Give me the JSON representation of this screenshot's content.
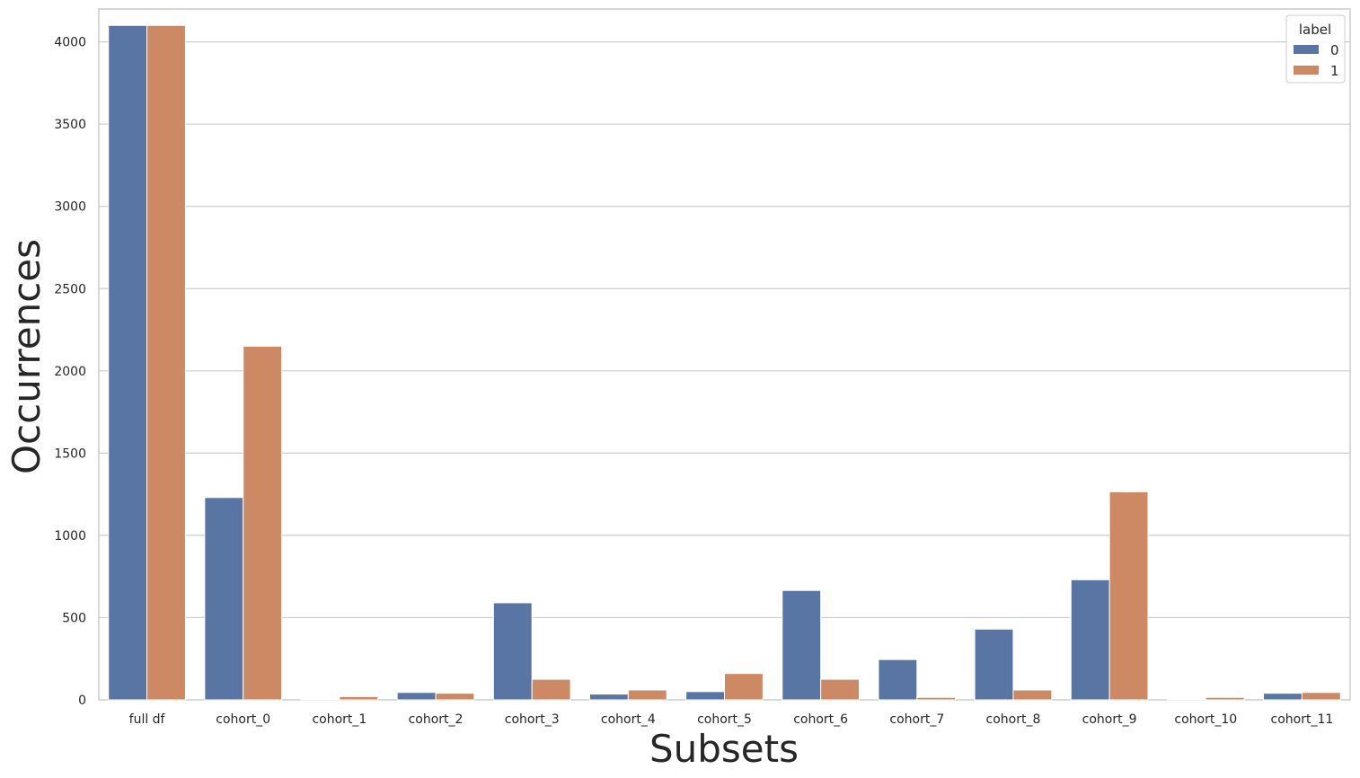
{
  "chart_data": {
    "type": "bar",
    "categories": [
      "full df",
      "cohort_0",
      "cohort_1",
      "cohort_2",
      "cohort_3",
      "cohort_4",
      "cohort_5",
      "cohort_6",
      "cohort_7",
      "cohort_8",
      "cohort_9",
      "cohort_10",
      "cohort_11"
    ],
    "series": [
      {
        "name": "0",
        "color": "#5875a4",
        "values": [
          4100,
          1230,
          5,
          45,
          590,
          35,
          50,
          665,
          245,
          430,
          730,
          5,
          40
        ]
      },
      {
        "name": "1",
        "color": "#cc8963",
        "values": [
          4100,
          2150,
          20,
          40,
          125,
          60,
          160,
          125,
          15,
          60,
          1265,
          15,
          45
        ]
      }
    ],
    "title": "",
    "xlabel": "Subsets",
    "ylabel": "Occurrences",
    "ylim": [
      0,
      4200
    ],
    "yticks": [
      0,
      500,
      1000,
      1500,
      2000,
      2500,
      3000,
      3500,
      4000
    ],
    "grid": true,
    "legend": {
      "title": "label",
      "placement": "top-right"
    }
  }
}
